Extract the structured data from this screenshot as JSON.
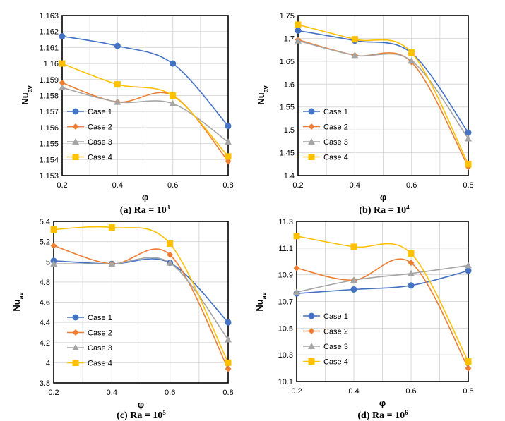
{
  "chart_data": [
    {
      "type": "line",
      "caption": "(a) Ra = 10",
      "caption_exp": "3",
      "xlabel": "φ",
      "ylabel": "Nu",
      "ylabel_sub": "av",
      "x": [
        0.2,
        0.4,
        0.6,
        0.8
      ],
      "x_ticks": [
        "0.2",
        "0.4",
        "0.6",
        "0.8"
      ],
      "xlim": [
        0.2,
        0.8
      ],
      "ylim": [
        1.153,
        1.163
      ],
      "y_ticks": [
        "1.153",
        "1.154",
        "1.155",
        "1.156",
        "1.157",
        "1.158",
        "1.159",
        "1.16",
        "1.161",
        "1.162",
        "1.163"
      ],
      "grid": true,
      "legend_position": "bottom-left",
      "series": [
        {
          "name": "Case 1",
          "values": [
            1.1617,
            1.1611,
            1.16,
            1.1561
          ]
        },
        {
          "name": "Case 2",
          "values": [
            1.1588,
            1.1576,
            1.158,
            1.1539
          ]
        },
        {
          "name": "Case 3",
          "values": [
            1.1585,
            1.1576,
            1.1575,
            1.1551
          ]
        },
        {
          "name": "Case 4",
          "values": [
            1.16,
            1.1587,
            1.158,
            1.1542
          ]
        }
      ]
    },
    {
      "type": "line",
      "caption": "(b) Ra = 10",
      "caption_exp": "4",
      "xlabel": "φ",
      "ylabel": "Nu",
      "ylabel_sub": "av",
      "x": [
        0.2,
        0.4,
        0.6,
        0.8
      ],
      "x_ticks": [
        "0.2",
        "0.4",
        "0.6",
        "0.8"
      ],
      "xlim": [
        0.2,
        0.8
      ],
      "ylim": [
        1.4,
        1.75
      ],
      "y_ticks": [
        "1.4",
        "1.45",
        "1.5",
        "1.55",
        "1.6",
        "1.65",
        "1.7",
        "1.75"
      ],
      "grid": true,
      "legend_position": "bottom-left",
      "series": [
        {
          "name": "Case 1",
          "values": [
            1.717,
            1.695,
            1.668,
            1.494
          ]
        },
        {
          "name": "Case 2",
          "values": [
            1.697,
            1.663,
            1.648,
            1.419
          ]
        },
        {
          "name": "Case 3",
          "values": [
            1.695,
            1.663,
            1.651,
            1.481
          ]
        },
        {
          "name": "Case 4",
          "values": [
            1.73,
            1.698,
            1.669,
            1.425
          ]
        }
      ]
    },
    {
      "type": "line",
      "caption": "(c) Ra = 10",
      "caption_exp": "5",
      "xlabel": "φ",
      "ylabel": "Nu",
      "ylabel_sub": "av",
      "x": [
        0.2,
        0.4,
        0.6,
        0.8
      ],
      "x_ticks": [
        "0.2",
        "0.4",
        "0.6",
        "0.8"
      ],
      "xlim": [
        0.2,
        0.8
      ],
      "ylim": [
        3.8,
        5.4
      ],
      "y_ticks": [
        "3.8",
        "4",
        "4.2",
        "4.4",
        "4.6",
        "4.8",
        "5",
        "5.2",
        "5.4"
      ],
      "grid": true,
      "legend_position": "bottom-left",
      "series": [
        {
          "name": "Case 1",
          "values": [
            5.01,
            4.98,
            4.99,
            4.4
          ]
        },
        {
          "name": "Case 2",
          "values": [
            5.16,
            4.98,
            5.07,
            3.94
          ]
        },
        {
          "name": "Case 3",
          "values": [
            4.98,
            4.98,
            4.99,
            4.23
          ]
        },
        {
          "name": "Case 4",
          "values": [
            5.32,
            5.34,
            5.18,
            4.0
          ]
        }
      ]
    },
    {
      "type": "line",
      "caption": "(d) Ra = 10",
      "caption_exp": "6",
      "xlabel": "φ",
      "ylabel": "Nu",
      "ylabel_sub": "av",
      "x": [
        0.2,
        0.4,
        0.6,
        0.8
      ],
      "x_ticks": [
        "0.2",
        "0.4",
        "0.6",
        "0.8"
      ],
      "xlim": [
        0.2,
        0.8
      ],
      "ylim": [
        10.1,
        11.3
      ],
      "y_ticks": [
        "10.1",
        "10.3",
        "10.5",
        "10.7",
        "10.9",
        "11.1",
        "11.3"
      ],
      "grid": true,
      "legend_position": "bottom-left",
      "series": [
        {
          "name": "Case 1",
          "values": [
            10.76,
            10.79,
            10.82,
            10.93
          ]
        },
        {
          "name": "Case 2",
          "values": [
            10.95,
            10.86,
            10.99,
            10.2
          ]
        },
        {
          "name": "Case 3",
          "values": [
            10.77,
            10.86,
            10.91,
            10.97
          ]
        },
        {
          "name": "Case 4",
          "values": [
            11.19,
            11.11,
            11.06,
            10.25
          ]
        }
      ]
    }
  ],
  "series_style": [
    {
      "color": "#4472C4",
      "marker": "circle"
    },
    {
      "color": "#ED7D31",
      "marker": "diamond"
    },
    {
      "color": "#A5A5A5",
      "marker": "triangle"
    },
    {
      "color": "#FFC000",
      "marker": "square"
    }
  ]
}
